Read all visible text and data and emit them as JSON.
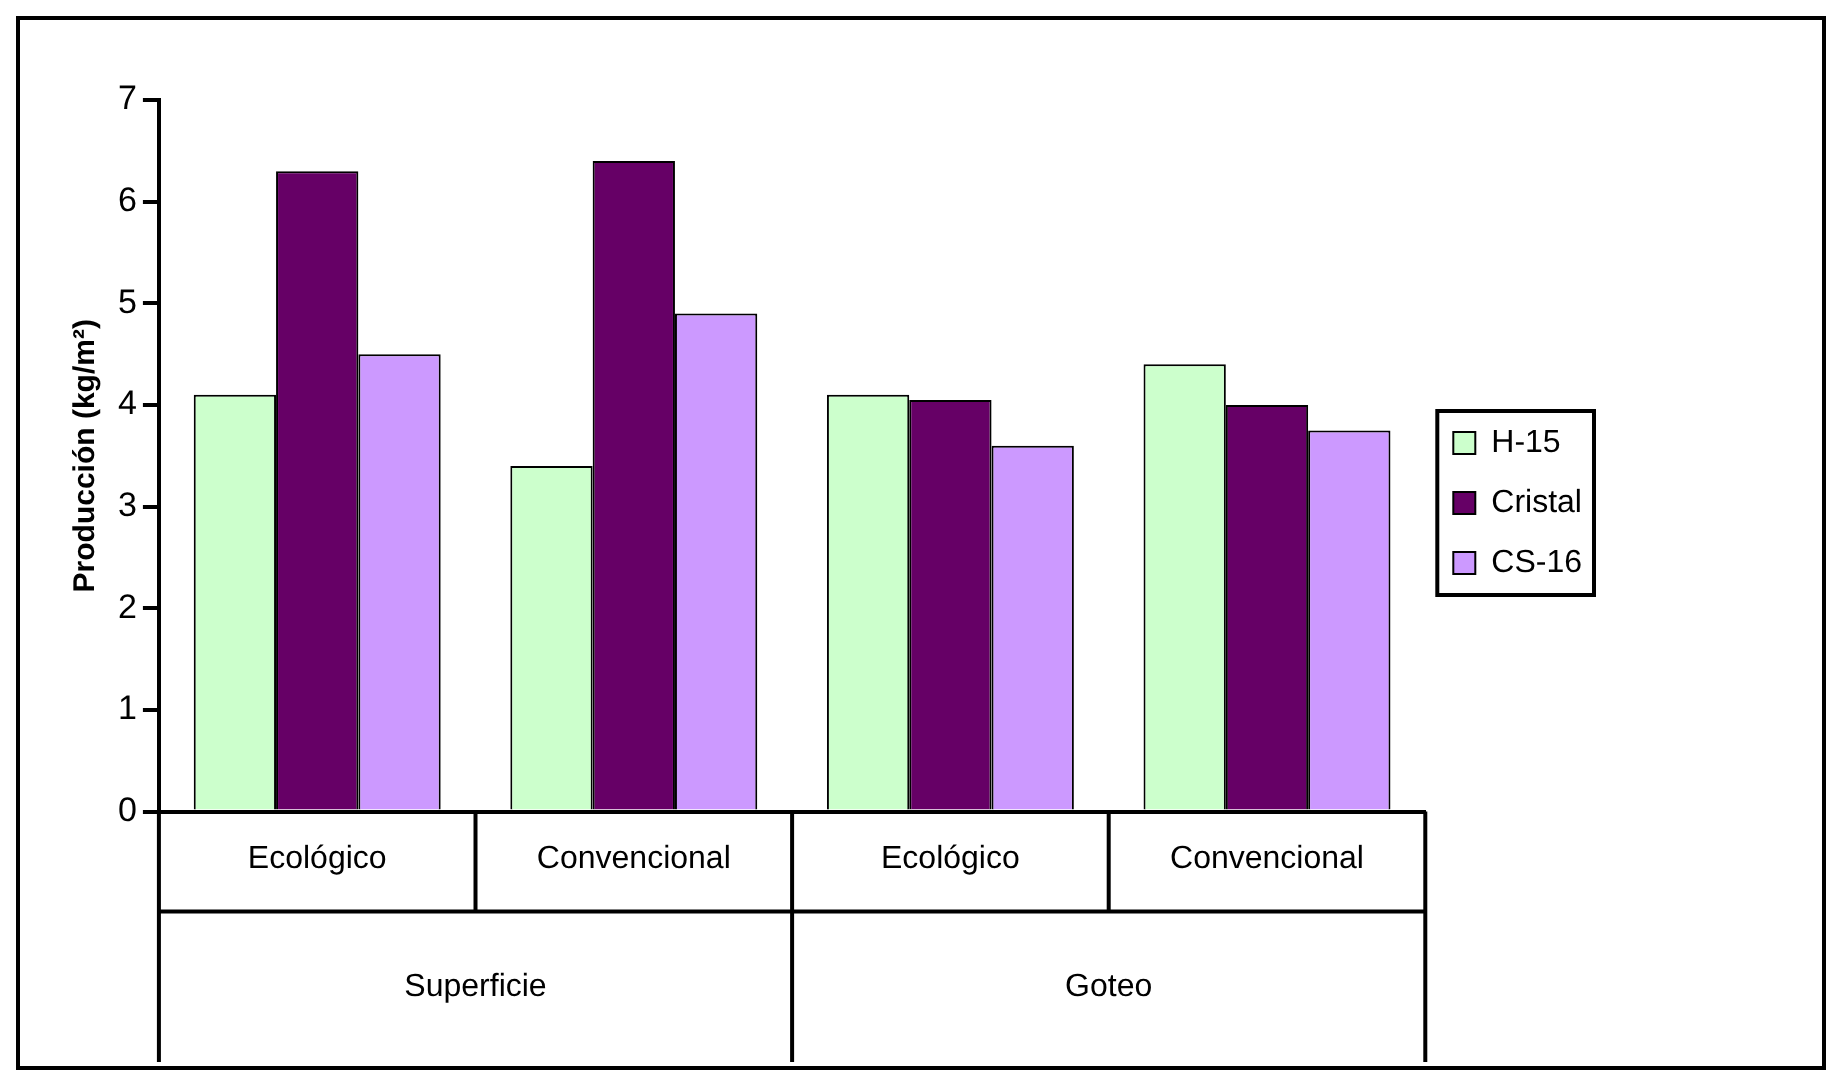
{
  "chart_data": {
    "type": "bar",
    "ylabel": "Producción (kg/m²)",
    "categories": [
      "Ecológico",
      "Convencional",
      "Ecológico",
      "Convencional"
    ],
    "annotations": [
      "Superficie",
      "Goteo"
    ],
    "series": [
      {
        "name": "H-15",
        "color": "#ccffcc",
        "values": [
          4.1,
          3.4,
          4.1,
          4.4
        ]
      },
      {
        "name": "Cristal",
        "color": "#660066",
        "values": [
          6.3,
          6.4,
          4.05,
          4.0
        ]
      },
      {
        "name": "CS-16",
        "color": "#cc99ff",
        "values": [
          4.5,
          4.9,
          3.6,
          3.75
        ]
      }
    ],
    "ylim": [
      0,
      7
    ],
    "yticks": [
      0,
      1,
      2,
      3,
      4,
      5,
      6,
      7
    ],
    "grid": false,
    "legend": "right"
  }
}
